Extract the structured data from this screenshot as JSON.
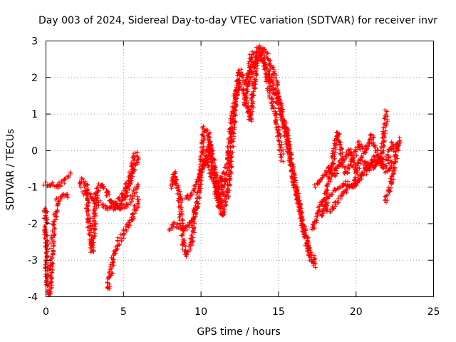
{
  "chart_data": {
    "type": "scatter",
    "title": "Day 003 of 2024, Sidereal Day-to-day VTEC variation (SDTVAR) for receiver invr",
    "xlabel": "GPS time / hours",
    "ylabel": "SDTVAR / TECUs",
    "xlim": [
      0,
      25
    ],
    "ylim": [
      -4,
      3
    ],
    "xticks": [
      "0",
      "5",
      "10",
      "15",
      "20",
      "25"
    ],
    "yticks": [
      "-4",
      "-3",
      "-2",
      "-1",
      "0",
      "1",
      "2",
      "3"
    ],
    "grid": true,
    "legend": "none",
    "marker": "plus",
    "color": "#ff0000",
    "series": [
      {
        "x": [
          0.0,
          0.2,
          0.5,
          0.8,
          1.0,
          1.3,
          1.6
        ],
        "y": [
          -0.9,
          -0.95,
          -0.95,
          -1.0,
          -0.9,
          -0.8,
          -0.6
        ]
      },
      {
        "x": [
          0.0,
          0.05,
          0.1,
          0.2,
          0.3,
          0.45,
          0.6,
          0.75,
          0.9,
          1.1,
          1.3,
          1.5
        ],
        "y": [
          -1.6,
          -3.0,
          -3.6,
          -3.95,
          -3.7,
          -2.5,
          -1.9,
          -1.4,
          -1.3,
          -1.25,
          -1.2,
          -1.3
        ]
      },
      {
        "x": [
          2.2,
          2.4,
          2.6,
          2.8,
          3.0,
          3.3,
          3.6,
          3.9,
          4.2,
          4.5,
          4.8,
          5.1,
          5.4,
          5.6,
          5.8,
          6.0
        ],
        "y": [
          -1.0,
          -0.8,
          -1.0,
          -2.0,
          -2.8,
          -1.1,
          -0.9,
          -1.1,
          -1.4,
          -1.5,
          -1.3,
          -1.1,
          -0.8,
          -0.4,
          -0.1,
          -0.1
        ]
      },
      {
        "x": [
          2.4,
          2.7,
          3.0,
          3.3,
          3.6,
          3.9,
          4.2,
          4.5,
          4.8,
          5.1,
          5.4,
          5.7,
          6.0
        ],
        "y": [
          -1.2,
          -1.1,
          -1.3,
          -1.35,
          -1.5,
          -1.6,
          -1.55,
          -1.6,
          -1.5,
          -1.3,
          -0.9,
          -0.5,
          -0.2
        ]
      },
      {
        "x": [
          4.0,
          4.2,
          4.4,
          4.7,
          5.0,
          5.3,
          5.6,
          5.8,
          6.0
        ],
        "y": [
          -3.8,
          -3.3,
          -2.9,
          -2.5,
          -2.3,
          -2.1,
          -1.9,
          -1.6,
          -1.3
        ]
      },
      {
        "x": [
          4.3,
          4.6,
          4.9,
          5.2,
          5.5,
          5.8,
          6.0
        ],
        "y": [
          -1.5,
          -1.55,
          -1.6,
          -1.5,
          -1.35,
          -1.1,
          -0.9
        ]
      },
      {
        "x": [
          8.1,
          8.3,
          8.6,
          8.9,
          9.1,
          9.4,
          9.7
        ],
        "y": [
          -1.0,
          -0.6,
          -1.2,
          -2.6,
          -2.9,
          -2.5,
          -1.5
        ]
      },
      {
        "x": [
          8.0,
          8.3,
          8.6,
          9.0,
          9.4,
          9.8,
          10.0,
          10.2,
          10.5,
          10.8,
          11.1,
          11.4
        ],
        "y": [
          -2.2,
          -2.0,
          -2.1,
          -2.2,
          -2.0,
          -1.5,
          -0.7,
          0.6,
          0.5,
          -0.5,
          -1.2,
          -0.6
        ]
      },
      {
        "x": [
          8.8,
          9.2,
          9.6,
          10.0,
          10.4,
          10.8,
          11.2,
          11.6,
          12.0,
          12.4,
          12.8,
          13.2,
          13.6
        ],
        "y": [
          -1.3,
          -1.3,
          -1.1,
          -0.6,
          -0.2,
          -0.8,
          -1.6,
          -0.7,
          0.8,
          1.9,
          1.6,
          0.8,
          2.4
        ]
      },
      {
        "x": [
          10.2,
          10.6,
          11.0,
          11.4,
          11.8,
          12.1,
          12.5,
          12.9,
          13.3,
          13.7,
          14.1,
          14.5,
          14.9,
          15.3
        ],
        "y": [
          -0.5,
          0.2,
          -0.8,
          -1.8,
          -1.0,
          0.6,
          2.2,
          1.8,
          2.6,
          2.8,
          2.4,
          1.5,
          0.8,
          -0.3
        ]
      },
      {
        "x": [
          12.8,
          13.2,
          13.6,
          14.0,
          14.4,
          14.8,
          15.2,
          15.6,
          16.0,
          16.4,
          16.8,
          17.2,
          17.5
        ],
        "y": [
          1.2,
          2.0,
          2.6,
          2.8,
          2.5,
          2.0,
          1.1,
          0.5,
          -0.8,
          -1.6,
          -2.4,
          -3.1,
          -3.2
        ]
      },
      {
        "x": [
          13.4,
          13.8,
          14.2,
          14.6,
          15.0,
          15.4,
          15.8,
          16.2,
          16.6,
          17.0,
          17.4
        ],
        "y": [
          2.3,
          2.6,
          2.3,
          1.8,
          1.3,
          0.6,
          -0.3,
          -1.2,
          -2.1,
          -2.8,
          -3.0
        ]
      },
      {
        "x": [
          17.2,
          17.6,
          18.0,
          18.4,
          18.8,
          19.2,
          19.6,
          20.0,
          20.4,
          20.8,
          21.2,
          21.6,
          22.0
        ],
        "y": [
          -2.2,
          -1.6,
          -1.3,
          -0.6,
          0.5,
          -0.3,
          0.0,
          -0.6,
          -0.2,
          -0.5,
          -0.2,
          -0.4,
          1.1
        ]
      },
      {
        "x": [
          17.4,
          17.8,
          18.2,
          18.6,
          19.0,
          19.4,
          19.8,
          20.2,
          20.6,
          21.0,
          21.4,
          21.8
        ],
        "y": [
          -1.0,
          -0.8,
          -0.5,
          -0.7,
          -0.3,
          -0.6,
          -0.3,
          0.2,
          -0.1,
          0.4,
          -0.1,
          -0.5
        ]
      },
      {
        "x": [
          18.0,
          18.4,
          18.8,
          19.2,
          19.6,
          20.0,
          20.4,
          20.8,
          21.2,
          21.6,
          22.0,
          22.4
        ],
        "y": [
          -1.5,
          -1.7,
          -1.4,
          -1.2,
          -1.0,
          -0.9,
          -0.7,
          -0.4,
          -0.5,
          -0.2,
          -0.6,
          -0.3
        ]
      },
      {
        "x": [
          17.8,
          18.2,
          18.6,
          19.0,
          19.4,
          19.8,
          20.2,
          20.6,
          21.0,
          21.4,
          21.8
        ],
        "y": [
          -1.8,
          -1.3,
          -1.1,
          -1.0,
          -0.9,
          -1.0,
          -0.7,
          -0.6,
          -0.4,
          -0.3,
          -0.2
        ]
      },
      {
        "x": [
          21.9,
          22.1,
          22.3,
          22.5,
          22.7,
          22.85
        ],
        "y": [
          -1.4,
          -1.2,
          -0.9,
          -0.5,
          0.1,
          0.3
        ]
      },
      {
        "x": [
          22.0,
          22.2,
          22.4,
          22.6,
          22.85
        ],
        "y": [
          -0.3,
          0.0,
          0.2,
          0.0,
          0.2
        ]
      }
    ]
  }
}
